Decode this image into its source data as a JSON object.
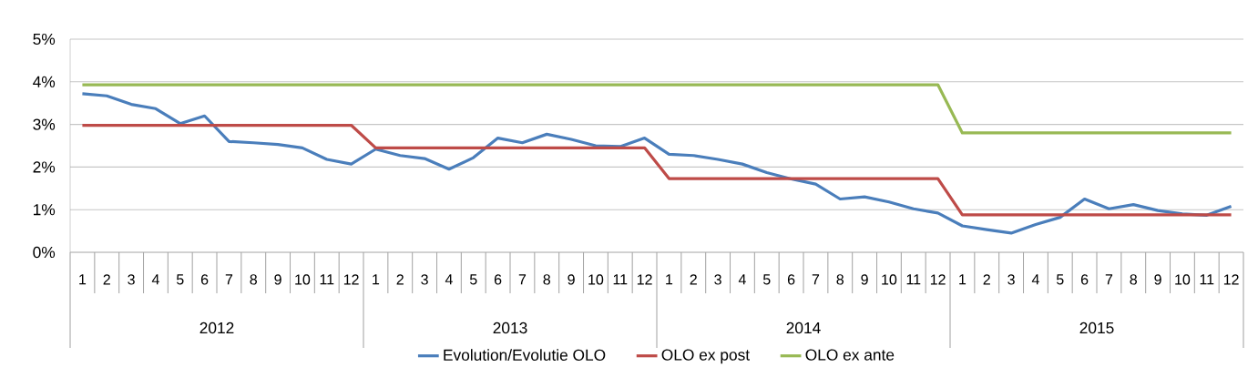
{
  "chart_data": {
    "type": "line",
    "categories": [
      "1",
      "2",
      "3",
      "4",
      "5",
      "6",
      "7",
      "8",
      "9",
      "10",
      "11",
      "12",
      "1",
      "2",
      "3",
      "4",
      "5",
      "6",
      "7",
      "8",
      "9",
      "10",
      "11",
      "12",
      "1",
      "2",
      "3",
      "4",
      "5",
      "6",
      "7",
      "8",
      "9",
      "10",
      "11",
      "12",
      "1",
      "2",
      "3",
      "4",
      "5",
      "6",
      "7",
      "8",
      "9",
      "10",
      "11",
      "12"
    ],
    "annotations": [
      "2012",
      "2013",
      "2014",
      "2015"
    ],
    "series": [
      {
        "name": "Evolution/Evolutie OLO",
        "color": "#4a7ebb",
        "values": [
          3.72,
          3.67,
          3.47,
          3.37,
          3.02,
          3.2,
          2.6,
          2.57,
          2.53,
          2.45,
          2.18,
          2.07,
          2.42,
          2.27,
          2.2,
          1.95,
          2.22,
          2.68,
          2.57,
          2.77,
          2.65,
          2.5,
          2.48,
          2.68,
          2.3,
          2.27,
          2.18,
          2.07,
          1.87,
          1.72,
          1.6,
          1.25,
          1.3,
          1.18,
          1.02,
          0.92,
          0.62,
          0.53,
          0.45,
          0.65,
          0.82,
          1.25,
          1.02,
          1.12,
          0.98,
          0.9,
          0.87,
          1.08
        ]
      },
      {
        "name": "OLO ex post",
        "color": "#be4b48",
        "values": [
          2.98,
          2.98,
          2.98,
          2.98,
          2.98,
          2.98,
          2.98,
          2.98,
          2.98,
          2.98,
          2.98,
          2.98,
          2.45,
          2.45,
          2.45,
          2.45,
          2.45,
          2.45,
          2.45,
          2.45,
          2.45,
          2.45,
          2.45,
          2.45,
          1.73,
          1.73,
          1.73,
          1.73,
          1.73,
          1.73,
          1.73,
          1.73,
          1.73,
          1.73,
          1.73,
          1.73,
          0.88,
          0.88,
          0.88,
          0.88,
          0.88,
          0.88,
          0.88,
          0.88,
          0.88,
          0.88,
          0.88,
          0.88
        ]
      },
      {
        "name": "OLO ex ante",
        "color": "#98b954",
        "values": [
          3.93,
          3.93,
          3.93,
          3.93,
          3.93,
          3.93,
          3.93,
          3.93,
          3.93,
          3.93,
          3.93,
          3.93,
          3.93,
          3.93,
          3.93,
          3.93,
          3.93,
          3.93,
          3.93,
          3.93,
          3.93,
          3.93,
          3.93,
          3.93,
          3.93,
          3.93,
          3.93,
          3.93,
          3.93,
          3.93,
          3.93,
          3.93,
          3.93,
          3.93,
          3.93,
          3.93,
          2.8,
          2.8,
          2.8,
          2.8,
          2.8,
          2.8,
          2.8,
          2.8,
          2.8,
          2.8,
          2.8,
          2.8
        ]
      }
    ],
    "ylim": [
      0,
      5
    ],
    "yticks": [
      {
        "value": 0,
        "label": "0%"
      },
      {
        "value": 1,
        "label": "1%"
      },
      {
        "value": 2,
        "label": "2%"
      },
      {
        "value": 3,
        "label": "3%"
      },
      {
        "value": 4,
        "label": "4%"
      },
      {
        "value": 5,
        "label": "5%"
      }
    ],
    "grid": "y",
    "legend": "bottom",
    "marker": "none",
    "line_style": "solid"
  }
}
